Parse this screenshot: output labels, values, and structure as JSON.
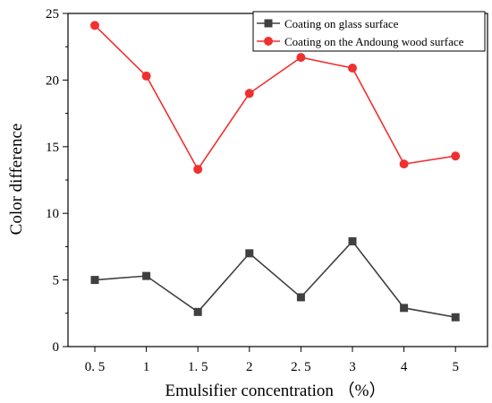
{
  "chart_data": {
    "type": "line",
    "xlabel": "Emulsifier concentration （%）",
    "ylabel": "Color difference",
    "categories": [
      "0. 5",
      "1",
      "1. 5",
      "2",
      "2. 5",
      "3",
      "4",
      "5"
    ],
    "ylim": [
      0,
      25
    ],
    "yticks": [
      0,
      5,
      10,
      15,
      20,
      25
    ],
    "grid": false,
    "legend_position": "top-right",
    "series": [
      {
        "name": "Coating on glass surface",
        "marker": "square",
        "color": "#404040",
        "values": [
          5.0,
          5.3,
          2.6,
          7.0,
          3.7,
          7.9,
          2.9,
          2.2
        ]
      },
      {
        "name": "Coating on the Andoung wood surface",
        "marker": "circle",
        "color": "#f03030",
        "values": [
          24.1,
          20.3,
          13.3,
          19.0,
          21.7,
          20.9,
          13.7,
          14.3
        ]
      }
    ]
  }
}
